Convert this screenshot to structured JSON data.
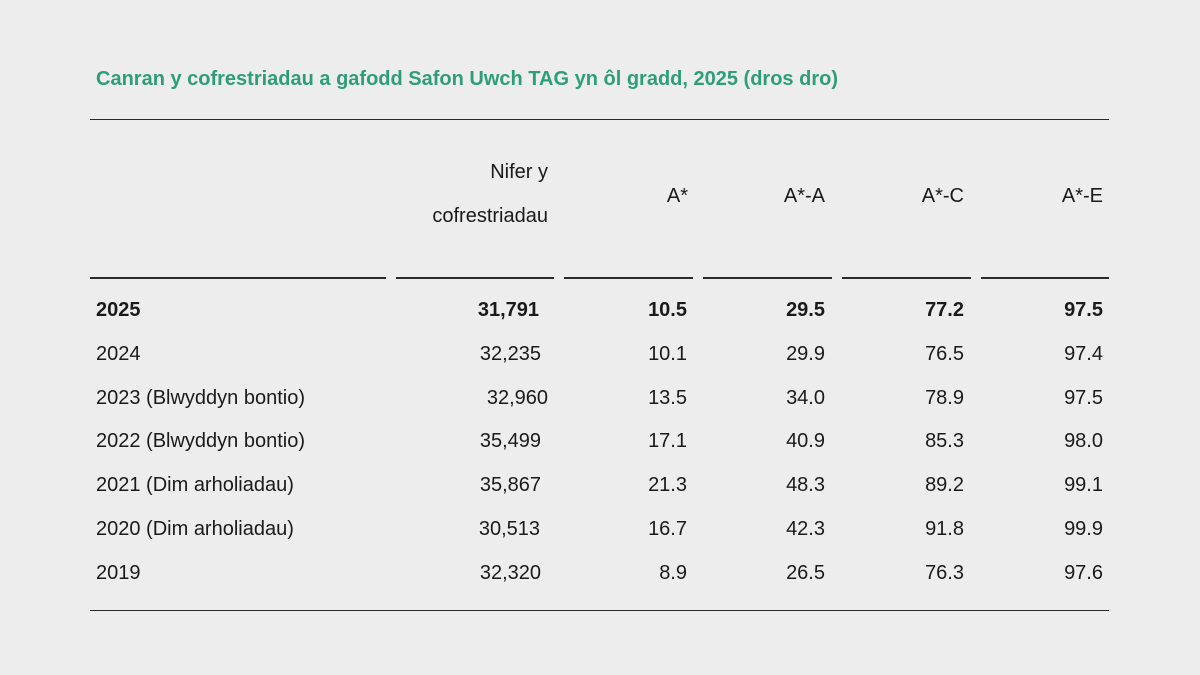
{
  "title": "Canran y cofrestriadau a gafodd Safon Uwch TAG yn ôl gradd, 2025 (dros dro)",
  "columns": {
    "entries_line1": "Nifer y",
    "entries_line2": "cofrestriadau",
    "astar": "A*",
    "astar_a": "A*-A",
    "astar_c": "A*-C",
    "astar_e": "A*-E"
  },
  "chart_data": {
    "type": "table",
    "title": "Canran y cofrestriadau a gafodd Safon Uwch TAG yn ôl gradd, 2025 (dros dro)",
    "columns": [
      "",
      "Nifer y cofrestriadau",
      "A*",
      "A*-A",
      "A*-C",
      "A*-E"
    ],
    "rows": [
      {
        "year": "2025",
        "entries": "31,791",
        "astar": "10.5",
        "astar_a": "29.5",
        "astar_c": "77.2",
        "astar_e": "97.5"
      },
      {
        "year": "2024",
        "entries": "32,235",
        "astar": "10.1",
        "astar_a": "29.9",
        "astar_c": "76.5",
        "astar_e": "97.4"
      },
      {
        "year": "2023 (Blwyddyn bontio)",
        "entries": "32,960",
        "astar": "13.5",
        "astar_a": "34.0",
        "astar_c": "78.9",
        "astar_e": "97.5"
      },
      {
        "year": "2022 (Blwyddyn bontio)",
        "entries": "35,499",
        "astar": "17.1",
        "astar_a": "40.9",
        "astar_c": "85.3",
        "astar_e": "98.0"
      },
      {
        "year": "2021 (Dim arholiadau)",
        "entries": "35,867",
        "astar": "21.3",
        "astar_a": "48.3",
        "astar_c": "89.2",
        "astar_e": "99.1"
      },
      {
        "year": "2020 (Dim arholiadau)",
        "entries": "30,513",
        "astar": "16.7",
        "astar_a": "42.3",
        "astar_c": "91.8",
        "astar_e": "99.9"
      },
      {
        "year": "2019",
        "entries": "32,320",
        "astar": "8.9",
        "astar_a": "26.5",
        "astar_c": "76.3",
        "astar_e": "97.6"
      }
    ]
  }
}
